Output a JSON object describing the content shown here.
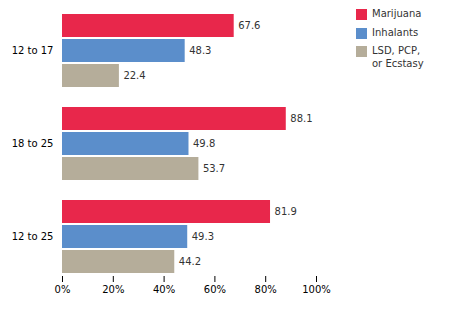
{
  "chart_data": {
    "type": "bar",
    "orientation": "horizontal",
    "categories": [
      "12 to 17",
      "18 to 25",
      "12 to 25"
    ],
    "series": [
      {
        "name": "Marijuana",
        "color": "#e8274b",
        "values": [
          67.6,
          88.1,
          81.9
        ]
      },
      {
        "name": "Inhalants",
        "color": "#5b8ecb",
        "values": [
          48.3,
          49.8,
          49.3
        ]
      },
      {
        "name": "LSD, PCP,\nor Ecstasy",
        "color": "#b5ad9a",
        "values": [
          22.4,
          53.7,
          44.2
        ]
      }
    ],
    "xlim": [
      0,
      100
    ],
    "xticks": [
      {
        "value": 0,
        "label": "0%"
      },
      {
        "value": 20,
        "label": "20%"
      },
      {
        "value": 40,
        "label": "40%"
      },
      {
        "value": 60,
        "label": "60%"
      },
      {
        "value": 80,
        "label": "80%"
      },
      {
        "value": 100,
        "label": "100%"
      }
    ],
    "data_labels": true,
    "grid": false,
    "legend": "upper right"
  }
}
